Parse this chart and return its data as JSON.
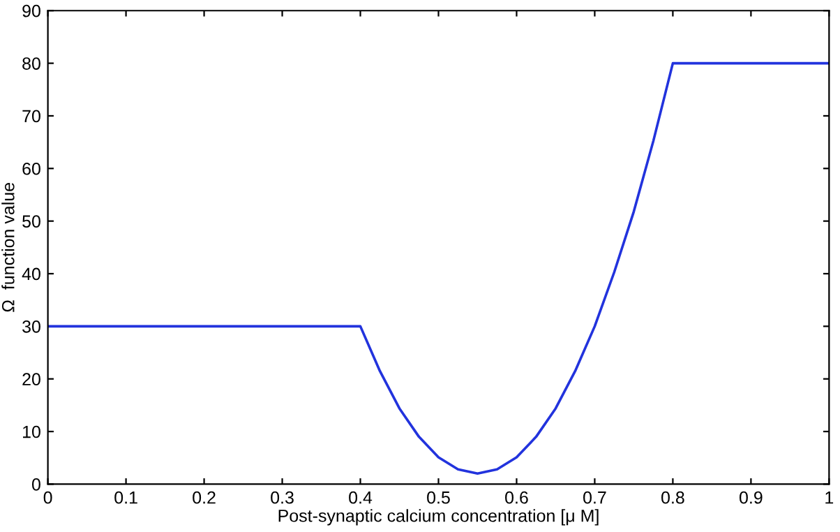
{
  "chart_data": {
    "type": "line",
    "xlabel": "Post-synaptic calcium concentration [μ M]",
    "ylabel": "Ω  function value",
    "series": [
      {
        "color": "#2233dd",
        "x": [
          0,
          0.4,
          0.425,
          0.45,
          0.475,
          0.5,
          0.525,
          0.55,
          0.575,
          0.6,
          0.625,
          0.65,
          0.675,
          0.7,
          0.725,
          0.75,
          0.775,
          0.8,
          0.81,
          1
        ],
        "values": [
          30,
          30,
          21.5,
          14.4,
          9,
          5.1,
          2.8,
          2,
          2.8,
          5.1,
          9,
          14.4,
          21.5,
          30,
          40.3,
          51.8,
          65.2,
          80,
          80,
          80
        ]
      }
    ],
    "xlim": [
      0,
      1
    ],
    "ylim": [
      0,
      90
    ],
    "xticks": [
      0,
      0.1,
      0.2,
      0.3,
      0.4,
      0.5,
      0.6,
      0.7,
      0.8,
      0.9,
      1
    ],
    "yticks": [
      0,
      10,
      20,
      30,
      40,
      50,
      60,
      70,
      80,
      90
    ],
    "grid": false,
    "marker": "none",
    "line_style": "solid"
  }
}
